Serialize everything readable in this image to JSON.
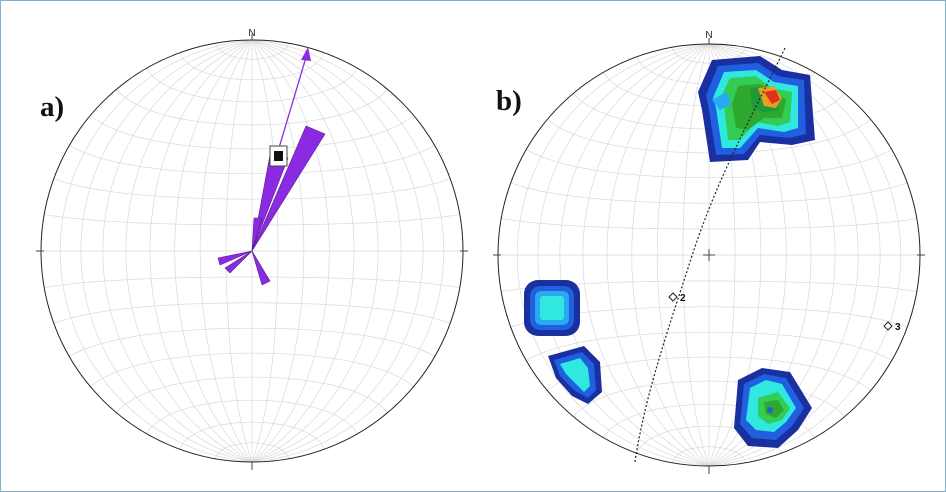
{
  "panels": [
    {
      "id": "a",
      "label": "a)",
      "north_label": "N"
    },
    {
      "id": "b",
      "label": "b)",
      "north_label": "N"
    }
  ],
  "panel_b_points": [
    {
      "label": "2"
    },
    {
      "label": "3"
    }
  ],
  "colors": {
    "frame": "#7fb0cc",
    "rose": "#8a2be2",
    "net_grid": "#d9d9d9",
    "contour_ramp": [
      "#1a2fa0",
      "#1f5fe0",
      "#2aa8f0",
      "#30e8e0",
      "#33cc55",
      "#2ea82e",
      "#e8a020",
      "#e03020"
    ]
  },
  "icons": [
    "mean-vector-arrow",
    "mean-vector-square",
    "point-marker-diamond"
  ]
}
